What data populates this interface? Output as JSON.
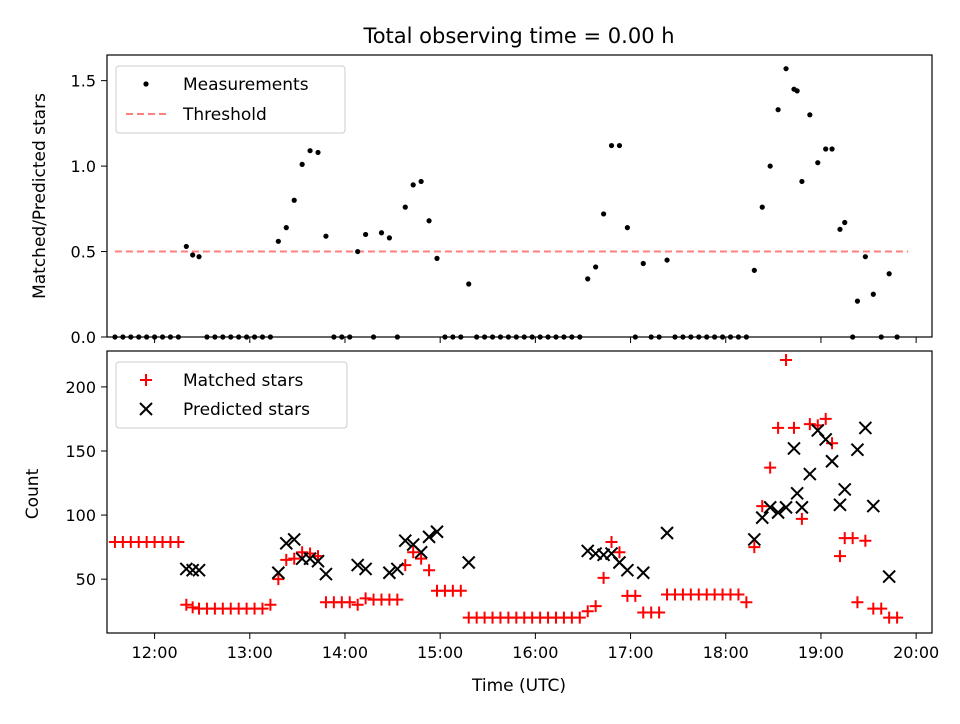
{
  "title": "Total observing time = 0.00 h",
  "colors": {
    "measurement": "#000000",
    "threshold": "#ff7f7f",
    "matched": "#ff0000",
    "predicted": "#000000"
  },
  "chart_data": [
    {
      "type": "scatter",
      "ylabel": "Matched/Predicted stars",
      "xlim": [
        "11:30",
        "20:10"
      ],
      "ylim": [
        0,
        1.65
      ],
      "yticks": [
        0.0,
        0.5,
        1.0,
        1.5
      ],
      "ytick_labels": [
        "0.0",
        "0.5",
        "1.0",
        "1.5"
      ],
      "xticks": [
        "12:00",
        "13:00",
        "14:00",
        "15:00",
        "16:00",
        "17:00",
        "18:00",
        "19:00",
        "20:00"
      ],
      "legend": {
        "placement": "upper-left",
        "entries": [
          "Measurements",
          "Threshold"
        ]
      },
      "threshold": {
        "name": "Threshold",
        "value": 0.5,
        "x_range": [
          "11:35",
          "19:55"
        ]
      },
      "series": [
        {
          "name": "Measurements",
          "points": [
            [
              "11:35",
              0
            ],
            [
              "11:40",
              0
            ],
            [
              "11:45",
              0
            ],
            [
              "11:50",
              0
            ],
            [
              "11:55",
              0
            ],
            [
              "12:00",
              0
            ],
            [
              "12:05",
              0
            ],
            [
              "12:10",
              0
            ],
            [
              "12:15",
              0
            ],
            [
              "12:20",
              0.53
            ],
            [
              "12:24",
              0.48
            ],
            [
              "12:28",
              0.47
            ],
            [
              "12:33",
              0
            ],
            [
              "12:38",
              0
            ],
            [
              "12:43",
              0
            ],
            [
              "12:48",
              0
            ],
            [
              "12:53",
              0
            ],
            [
              "12:58",
              0
            ],
            [
              "13:03",
              0
            ],
            [
              "13:08",
              0
            ],
            [
              "13:13",
              0
            ],
            [
              "13:18",
              0.56
            ],
            [
              "13:23",
              0.64
            ],
            [
              "13:28",
              0.8
            ],
            [
              "13:33",
              1.01
            ],
            [
              "13:38",
              1.09
            ],
            [
              "13:43",
              1.08
            ],
            [
              "13:48",
              0.59
            ],
            [
              "13:53",
              0
            ],
            [
              "13:58",
              0
            ],
            [
              "14:03",
              0
            ],
            [
              "14:08",
              0.5
            ],
            [
              "14:13",
              0.6
            ],
            [
              "14:18",
              0
            ],
            [
              "14:23",
              0.61
            ],
            [
              "14:28",
              0.58
            ],
            [
              "14:33",
              0
            ],
            [
              "14:38",
              0.76
            ],
            [
              "14:43",
              0.89
            ],
            [
              "14:48",
              0.91
            ],
            [
              "14:53",
              0.68
            ],
            [
              "14:58",
              0.46
            ],
            [
              "15:03",
              0
            ],
            [
              "15:08",
              0
            ],
            [
              "15:13",
              0
            ],
            [
              "15:18",
              0.31
            ],
            [
              "15:23",
              0
            ],
            [
              "15:28",
              0
            ],
            [
              "15:33",
              0
            ],
            [
              "15:38",
              0
            ],
            [
              "15:43",
              0
            ],
            [
              "15:48",
              0
            ],
            [
              "15:53",
              0
            ],
            [
              "15:58",
              0
            ],
            [
              "16:03",
              0
            ],
            [
              "16:08",
              0
            ],
            [
              "16:13",
              0
            ],
            [
              "16:18",
              0
            ],
            [
              "16:23",
              0
            ],
            [
              "16:28",
              0
            ],
            [
              "16:33",
              0.34
            ],
            [
              "16:38",
              0.41
            ],
            [
              "16:43",
              0.72
            ],
            [
              "16:48",
              1.12
            ],
            [
              "16:53",
              1.12
            ],
            [
              "16:58",
              0.64
            ],
            [
              "17:03",
              0
            ],
            [
              "17:08",
              0.43
            ],
            [
              "17:13",
              0
            ],
            [
              "17:18",
              0
            ],
            [
              "17:23",
              0.45
            ],
            [
              "17:28",
              0
            ],
            [
              "17:33",
              0
            ],
            [
              "17:38",
              0
            ],
            [
              "17:43",
              0
            ],
            [
              "17:48",
              0
            ],
            [
              "17:53",
              0
            ],
            [
              "17:58",
              0
            ],
            [
              "18:03",
              0
            ],
            [
              "18:08",
              0
            ],
            [
              "18:13",
              0
            ],
            [
              "18:18",
              0.39
            ],
            [
              "18:23",
              0.76
            ],
            [
              "18:28",
              1.0
            ],
            [
              "18:33",
              1.33
            ],
            [
              "18:38",
              1.57
            ],
            [
              "18:43",
              1.45
            ],
            [
              "18:45",
              1.44
            ],
            [
              "18:48",
              0.91
            ],
            [
              "18:53",
              1.3
            ],
            [
              "18:58",
              1.02
            ],
            [
              "19:03",
              1.1
            ],
            [
              "19:07",
              1.1
            ],
            [
              "19:12",
              0.63
            ],
            [
              "19:15",
              0.67
            ],
            [
              "19:20",
              0
            ],
            [
              "19:23",
              0.21
            ],
            [
              "19:28",
              0.47
            ],
            [
              "19:33",
              0.25
            ],
            [
              "19:38",
              0
            ],
            [
              "19:43",
              0.37
            ],
            [
              "19:48",
              0
            ]
          ]
        }
      ]
    },
    {
      "type": "scatter",
      "ylabel": "Count",
      "xlabel": "Time (UTC)",
      "xlim": [
        "11:30",
        "20:10"
      ],
      "ylim": [
        8,
        228
      ],
      "yticks": [
        50,
        100,
        150,
        200
      ],
      "ytick_labels": [
        "50",
        "100",
        "150",
        "200"
      ],
      "xticks": [
        "12:00",
        "13:00",
        "14:00",
        "15:00",
        "16:00",
        "17:00",
        "18:00",
        "19:00",
        "20:00"
      ],
      "legend": {
        "placement": "upper-left",
        "entries": [
          "Matched stars",
          "Predicted stars"
        ]
      },
      "series": [
        {
          "name": "Matched stars",
          "points": [
            [
              "11:35",
              79
            ],
            [
              "11:40",
              79
            ],
            [
              "11:45",
              79
            ],
            [
              "11:50",
              79
            ],
            [
              "11:55",
              79
            ],
            [
              "12:00",
              79
            ],
            [
              "12:05",
              79
            ],
            [
              "12:10",
              79
            ],
            [
              "12:15",
              79
            ],
            [
              "12:20",
              30
            ],
            [
              "12:24",
              28
            ],
            [
              "12:28",
              27
            ],
            [
              "12:33",
              27
            ],
            [
              "12:38",
              27
            ],
            [
              "12:43",
              27
            ],
            [
              "12:48",
              27
            ],
            [
              "12:53",
              27
            ],
            [
              "12:58",
              27
            ],
            [
              "13:03",
              27
            ],
            [
              "13:08",
              27
            ],
            [
              "13:13",
              30
            ],
            [
              "13:18",
              50
            ],
            [
              "13:23",
              65
            ],
            [
              "13:28",
              66
            ],
            [
              "13:33",
              71
            ],
            [
              "13:38",
              70
            ],
            [
              "13:43",
              68
            ],
            [
              "13:48",
              32
            ],
            [
              "13:53",
              32
            ],
            [
              "13:58",
              32
            ],
            [
              "14:03",
              32
            ],
            [
              "14:08",
              30
            ],
            [
              "14:13",
              35
            ],
            [
              "14:18",
              34
            ],
            [
              "14:23",
              34
            ],
            [
              "14:28",
              34
            ],
            [
              "14:33",
              34
            ],
            [
              "14:38",
              61
            ],
            [
              "14:43",
              71
            ],
            [
              "14:48",
              66
            ],
            [
              "14:53",
              57
            ],
            [
              "14:58",
              41
            ],
            [
              "15:03",
              41
            ],
            [
              "15:08",
              41
            ],
            [
              "15:13",
              41
            ],
            [
              "15:18",
              20
            ],
            [
              "15:23",
              20
            ],
            [
              "15:28",
              20
            ],
            [
              "15:33",
              20
            ],
            [
              "15:38",
              20
            ],
            [
              "15:43",
              20
            ],
            [
              "15:48",
              20
            ],
            [
              "15:53",
              20
            ],
            [
              "15:58",
              20
            ],
            [
              "16:03",
              20
            ],
            [
              "16:08",
              20
            ],
            [
              "16:13",
              20
            ],
            [
              "16:18",
              20
            ],
            [
              "16:23",
              20
            ],
            [
              "16:28",
              20
            ],
            [
              "16:33",
              25
            ],
            [
              "16:38",
              29
            ],
            [
              "16:43",
              51
            ],
            [
              "16:48",
              79
            ],
            [
              "16:53",
              71
            ],
            [
              "16:58",
              37
            ],
            [
              "17:03",
              37
            ],
            [
              "17:08",
              24
            ],
            [
              "17:13",
              24
            ],
            [
              "17:18",
              24
            ],
            [
              "17:23",
              38
            ],
            [
              "17:28",
              38
            ],
            [
              "17:33",
              38
            ],
            [
              "17:38",
              38
            ],
            [
              "17:43",
              38
            ],
            [
              "17:48",
              38
            ],
            [
              "17:53",
              38
            ],
            [
              "17:58",
              38
            ],
            [
              "18:03",
              38
            ],
            [
              "18:08",
              38
            ],
            [
              "18:13",
              32
            ],
            [
              "18:18",
              75
            ],
            [
              "18:23",
              107
            ],
            [
              "18:28",
              137
            ],
            [
              "18:33",
              168
            ],
            [
              "18:38",
              221
            ],
            [
              "18:43",
              168
            ],
            [
              "18:48",
              97
            ],
            [
              "18:53",
              171
            ],
            [
              "18:58",
              170
            ],
            [
              "19:03",
              175
            ],
            [
              "19:07",
              156
            ],
            [
              "19:12",
              68
            ],
            [
              "19:15",
              82
            ],
            [
              "19:20",
              82
            ],
            [
              "19:23",
              32
            ],
            [
              "19:28",
              80
            ],
            [
              "19:33",
              27
            ],
            [
              "19:38",
              27
            ],
            [
              "19:43",
              20
            ],
            [
              "19:48",
              20
            ]
          ]
        },
        {
          "name": "Predicted stars",
          "points": [
            [
              "12:20",
              58
            ],
            [
              "12:24",
              57
            ],
            [
              "12:28",
              57
            ],
            [
              "13:18",
              55
            ],
            [
              "13:23",
              78
            ],
            [
              "13:28",
              81
            ],
            [
              "13:33",
              66
            ],
            [
              "13:38",
              66
            ],
            [
              "13:43",
              64
            ],
            [
              "13:48",
              54
            ],
            [
              "14:08",
              61
            ],
            [
              "14:13",
              58
            ],
            [
              "14:28",
              55
            ],
            [
              "14:33",
              58
            ],
            [
              "14:38",
              80
            ],
            [
              "14:43",
              77
            ],
            [
              "14:48",
              71
            ],
            [
              "14:53",
              83
            ],
            [
              "14:58",
              87
            ],
            [
              "15:18",
              63
            ],
            [
              "16:33",
              72
            ],
            [
              "16:38",
              70
            ],
            [
              "16:43",
              69
            ],
            [
              "16:48",
              70
            ],
            [
              "16:53",
              63
            ],
            [
              "16:58",
              57
            ],
            [
              "17:08",
              55
            ],
            [
              "17:23",
              86
            ],
            [
              "18:18",
              81
            ],
            [
              "18:23",
              98
            ],
            [
              "18:28",
              106
            ],
            [
              "18:33",
              102
            ],
            [
              "18:38",
              106
            ],
            [
              "18:43",
              152
            ],
            [
              "18:45",
              117
            ],
            [
              "18:48",
              106
            ],
            [
              "18:53",
              132
            ],
            [
              "18:58",
              166
            ],
            [
              "19:03",
              159
            ],
            [
              "19:07",
              142
            ],
            [
              "19:12",
              108
            ],
            [
              "19:15",
              120
            ],
            [
              "19:23",
              151
            ],
            [
              "19:28",
              168
            ],
            [
              "19:33",
              107
            ],
            [
              "19:43",
              52
            ]
          ]
        }
      ]
    }
  ]
}
